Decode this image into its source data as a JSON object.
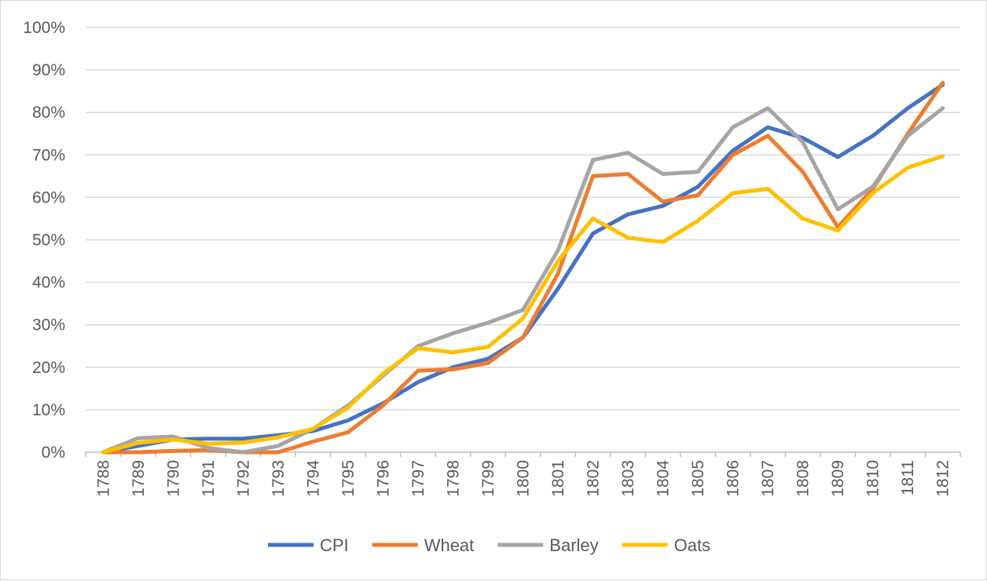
{
  "chart_data": {
    "type": "line",
    "title": "",
    "xlabel": "",
    "ylabel": "",
    "ylim": [
      0,
      100
    ],
    "y_ticks": [
      "0%",
      "10%",
      "20%",
      "30%",
      "40%",
      "50%",
      "60%",
      "70%",
      "80%",
      "90%",
      "100%"
    ],
    "grid": "horizontal",
    "legend_position": "bottom",
    "categories": [
      "1788",
      "1789",
      "1790",
      "1791",
      "1792",
      "1793",
      "1794",
      "1795",
      "1796",
      "1797",
      "1798",
      "1799",
      "1800",
      "1801",
      "1802",
      "1803",
      "1804",
      "1805",
      "1806",
      "1807",
      "1808",
      "1809",
      "1810",
      "1811",
      "1812"
    ],
    "series": [
      {
        "name": "CPI",
        "color": "#4472C4",
        "values": [
          0,
          1.5,
          3,
          3.2,
          3.2,
          4,
          5,
          7.5,
          11.5,
          16.5,
          20,
          22,
          27,
          38.5,
          51.5,
          56,
          58,
          62.5,
          71,
          76.5,
          74,
          69.5,
          74.5,
          81,
          86.5
        ]
      },
      {
        "name": "Wheat",
        "color": "#ED7D31",
        "values": [
          0,
          0,
          0.3,
          0.5,
          0,
          0,
          2.5,
          4.7,
          11,
          19.2,
          19.5,
          21,
          27,
          42,
          65,
          65.5,
          59,
          60.5,
          70,
          74.5,
          66,
          53,
          62,
          75,
          87
        ]
      },
      {
        "name": "Barley",
        "color": "#A5A5A5",
        "values": [
          0,
          3.3,
          3.7,
          1,
          0,
          1.5,
          5.5,
          11,
          18,
          25,
          28,
          30.5,
          33.5,
          47.5,
          68.8,
          70.5,
          65.5,
          66,
          76.5,
          81,
          73,
          57.2,
          62.5,
          74.5,
          81
        ]
      },
      {
        "name": "Oats",
        "color": "#FFC000",
        "values": [
          0,
          2.2,
          3,
          2,
          2.3,
          3.5,
          5.5,
          10.5,
          18.5,
          24.5,
          23.5,
          24.8,
          31.5,
          45,
          55,
          50.5,
          49.5,
          54.5,
          61,
          62,
          55,
          52.2,
          61,
          67,
          69.7
        ]
      }
    ]
  }
}
